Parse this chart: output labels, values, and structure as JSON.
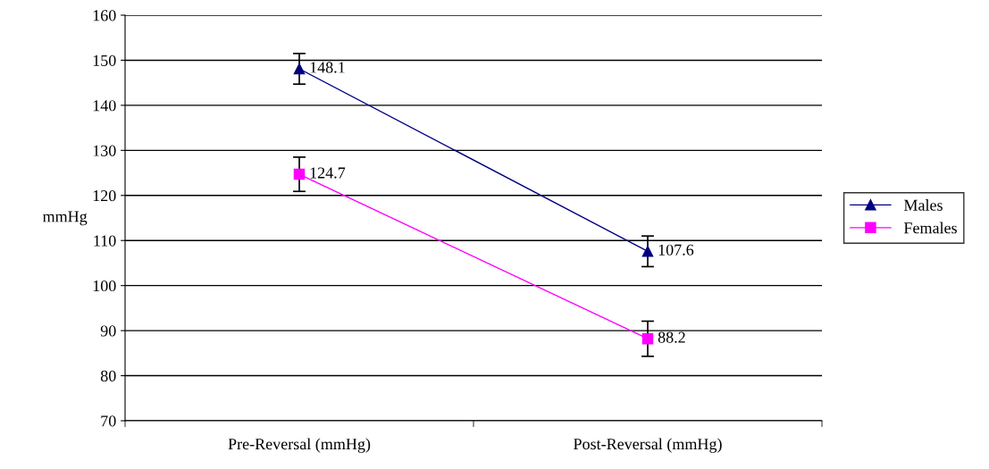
{
  "chart_data": {
    "type": "line",
    "ylabel": "mmHg",
    "categories": [
      "Pre-Reversal (mmHg)",
      "Post-Reversal (mmHg)"
    ],
    "series": [
      {
        "name": "Males",
        "color": "#000080",
        "values": [
          148.1,
          107.6
        ],
        "errors": [
          3.4,
          3.4
        ],
        "marker": "triangle"
      },
      {
        "name": "Females",
        "color": "#ff00ff",
        "values": [
          124.7,
          88.2
        ],
        "errors": [
          3.8,
          3.9
        ],
        "marker": "square"
      }
    ],
    "ylim": [
      70,
      160
    ],
    "yticks": [
      70,
      80,
      90,
      100,
      110,
      120,
      130,
      140,
      150,
      160
    ],
    "grid": "y",
    "legend": "right",
    "data_labels": true,
    "line_style": "solid"
  }
}
